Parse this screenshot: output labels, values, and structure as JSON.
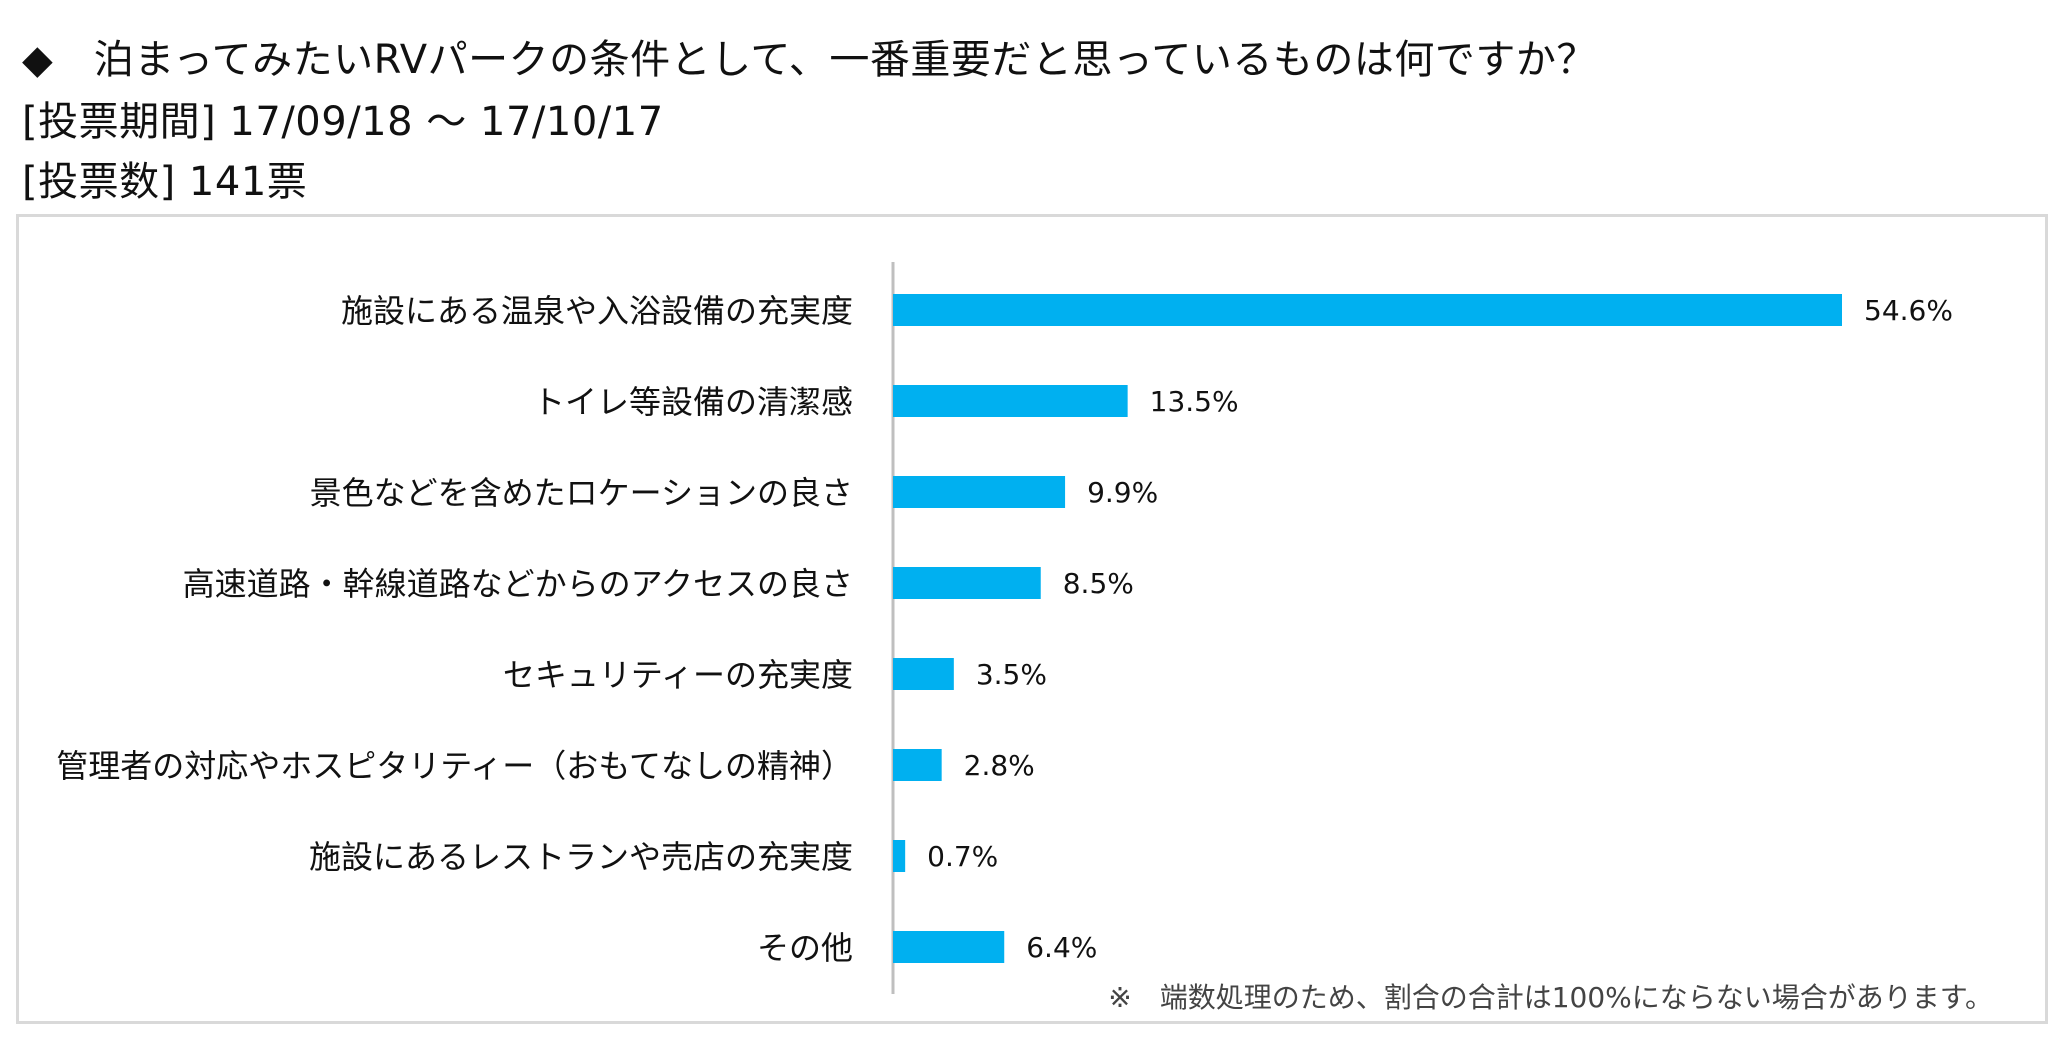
{
  "header": {
    "question": "◆　泊まってみたいRVパークの条件として、一番重要だと思っているものは何ですか？",
    "period": "[投票期間] 17/09/18 ～ 17/10/17",
    "votes": "[投票数] 141票"
  },
  "footnote": "※　端数処理のため、割合の合計は100%にならない場合があります。",
  "colors": {
    "bar": "#00b0f0",
    "axis": "#bfbfbf",
    "frame": "#d9d9d9"
  },
  "chart_data": {
    "type": "bar",
    "orientation": "horizontal",
    "title": "",
    "xlabel": "",
    "ylabel": "",
    "xlim": [
      0,
      60
    ],
    "grid": false,
    "legend": "none",
    "categories": [
      "施設にある温泉や入浴設備の充実度",
      "トイレ等設備の清潔感",
      "景色などを含めたロケーションの良さ",
      "高速道路・幹線道路などからのアクセスの良さ",
      "セキュリティーの充実度",
      "管理者の対応やホスピタリティー（おもてなしの精神）",
      "施設にあるレストランや売店の充実度",
      "その他"
    ],
    "values": [
      54.6,
      13.5,
      9.9,
      8.5,
      3.5,
      2.8,
      0.7,
      6.4
    ],
    "value_labels": [
      "54.6%",
      "13.5%",
      "9.9%",
      "8.5%",
      "3.5%",
      "2.8%",
      "0.7%",
      "6.4%"
    ]
  }
}
